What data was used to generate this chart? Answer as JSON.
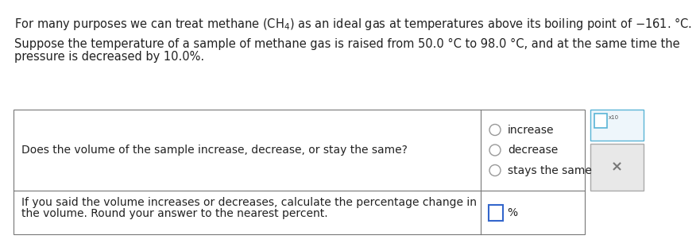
{
  "background_color": "#ffffff",
  "text_color": "#333333",
  "para1": "For many purposes we can treat methane $\\left(\\mathrm{CH_4}\\right)$ as an ideal gas at temperatures above its boiling point of $-$161. °C.",
  "para2_line1": "Suppose the temperature of a sample of methane gas is raised from 50.0 °C to 98.0 °C, and at the same time the",
  "para2_line2": "pressure is decreased by 10.0%.",
  "table_q_text": "Does the volume of the sample increase, decrease, or stay the same?",
  "table_options": [
    "increase",
    "decrease",
    "stays the same"
  ],
  "table_row2_line1": "If you said the volume increases or decreases, calculate the percentage change in",
  "table_row2_line2": "the volume. Round your answer to the nearest percent.",
  "pct_label": "%",
  "font_size_body": 10.5,
  "font_size_table": 10.0,
  "text_color_dark": "#222222",
  "radio_color": "#999999",
  "input_border_color": "#3366cc",
  "table_border_color": "#777777",
  "side_top_bg": "#eef6fb",
  "side_top_border": "#5ab4d6",
  "side_bot_bg": "#e8e8e8",
  "side_bot_border": "#aaaaaa",
  "x_color": "#777777"
}
